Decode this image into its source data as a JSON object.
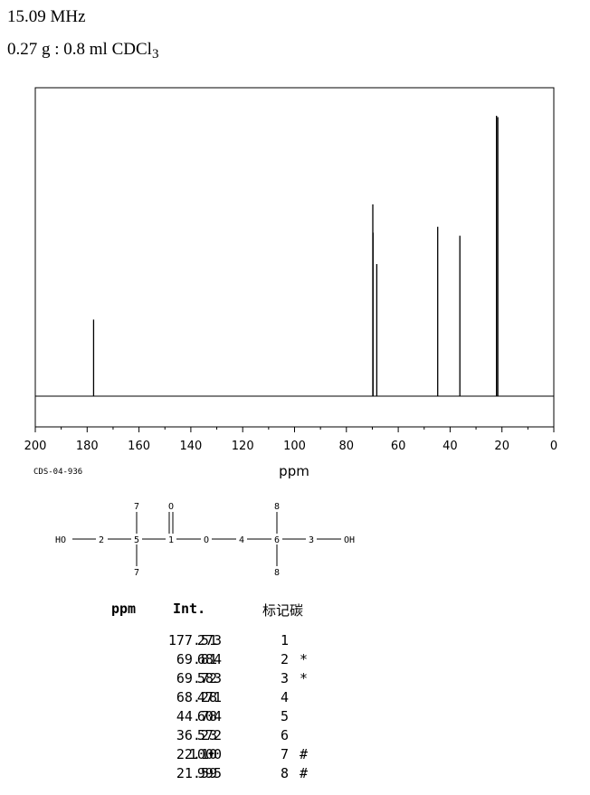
{
  "header": {
    "frequency": "15.09 MHz",
    "sample_prefix": "0.27 g : 0.8 ml CDCl",
    "sample_sub": "3"
  },
  "code": "CDS-04-936",
  "chart_data": {
    "type": "spectrum",
    "xlabel": "ppm",
    "xlim": [
      200,
      0
    ],
    "x_ticks": [
      200,
      180,
      160,
      140,
      120,
      100,
      80,
      60,
      40,
      20,
      0
    ],
    "peaks": [
      {
        "ppm": 177.51,
        "intensity": 273
      },
      {
        "ppm": 69.81,
        "intensity": 684
      },
      {
        "ppm": 69.72,
        "intensity": 583
      },
      {
        "ppm": 68.28,
        "intensity": 471
      },
      {
        "ppm": 44.78,
        "intensity": 604
      },
      {
        "ppm": 36.23,
        "intensity": 572
      },
      {
        "ppm": 22.1,
        "intensity": 1000
      },
      {
        "ppm": 21.59,
        "intensity": 995
      }
    ]
  },
  "molecule": {
    "labels": {
      "ho_left": "HO",
      "oh_right": "OH",
      "n2": "2",
      "n5": "5",
      "n1": "1",
      "n4": "4",
      "n6": "6",
      "n3": "3",
      "o_ring": "O",
      "o_carbonyl": "O",
      "n7_top": "7",
      "n7_bot": "7",
      "n8_top": "8",
      "n8_bot": "8"
    }
  },
  "table": {
    "headers": {
      "ppm": "ppm",
      "int": "Int.",
      "carbon": "标记碳"
    },
    "rows": [
      {
        "ppm": "177.51",
        "int": "273",
        "carbon": "1",
        "mark": ""
      },
      {
        "ppm": "69.81",
        "int": "684",
        "carbon": "2",
        "mark": "*"
      },
      {
        "ppm": "69.72",
        "int": "583",
        "carbon": "3",
        "mark": "*"
      },
      {
        "ppm": "68.28",
        "int": "471",
        "carbon": "4",
        "mark": ""
      },
      {
        "ppm": "44.78",
        "int": "604",
        "carbon": "5",
        "mark": ""
      },
      {
        "ppm": "36.23",
        "int": "572",
        "carbon": "6",
        "mark": ""
      },
      {
        "ppm": "22.10",
        "int": "1000",
        "carbon": "7",
        "mark": "#"
      },
      {
        "ppm": "21.59",
        "int": "995",
        "carbon": "8",
        "mark": "#"
      }
    ]
  }
}
